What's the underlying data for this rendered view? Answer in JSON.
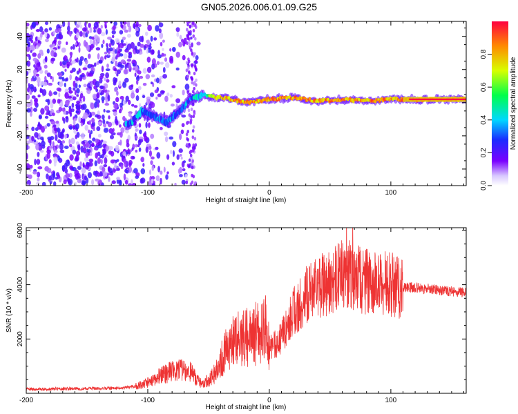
{
  "title": "GN05.2026.006.01.09.G25",
  "chart_data": [
    {
      "type": "heatmap",
      "xlabel": "Height of straight line (km)",
      "ylabel": "Frequency (Hz)",
      "xlim": [
        -200,
        162
      ],
      "ylim": [
        -50,
        49
      ],
      "xticks": [
        -200,
        -100,
        0,
        100
      ],
      "xtick_labels": [
        "-200",
        "-100",
        "0",
        "100"
      ],
      "yticks": [
        -40,
        -20,
        0,
        20,
        40
      ],
      "ytick_labels": [
        "-40",
        "-20",
        "0",
        "20",
        "40"
      ],
      "colorbar": {
        "label": "Normalized spectral amplitude",
        "range": [
          0,
          1
        ],
        "ticks": [
          0,
          0.2,
          0.4,
          0.6,
          0.8
        ],
        "tick_labels": [
          "0.0",
          "0.2",
          "0.4",
          "0.6",
          "0.8"
        ]
      },
      "ridge": {
        "x": [
          -115,
          -105,
          -95,
          -85,
          -75,
          -65,
          -55,
          -45,
          -35,
          -20,
          -10,
          0,
          20,
          40,
          60,
          80,
          100,
          120,
          140,
          162
        ],
        "frequency": [
          -13,
          -5,
          -8,
          -12,
          -6,
          2,
          5,
          3,
          3,
          0,
          1,
          2,
          3,
          1,
          2,
          1,
          2,
          2,
          2,
          2
        ],
        "peak_amplitude": [
          0.45,
          0.45,
          0.4,
          0.45,
          0.4,
          0.45,
          0.55,
          0.85,
          0.9,
          0.95,
          0.95,
          0.95,
          0.95,
          0.95,
          0.95,
          0.95,
          0.95,
          1.0,
          1.0,
          1.0
        ]
      },
      "noise_region": {
        "x_range": [
          -200,
          -55
        ],
        "amplitude_range": [
          0.05,
          0.25
        ]
      }
    },
    {
      "type": "line",
      "xlabel": "Height of straight line (km)",
      "ylabel": "SNR (10 * v/v)",
      "xlim": [
        -200,
        162
      ],
      "ylim": [
        0,
        6100
      ],
      "xticks": [
        -200,
        -100,
        0,
        100
      ],
      "xtick_labels": [
        "-200",
        "-100",
        "0",
        "100"
      ],
      "yticks": [
        2000,
        4000,
        6000
      ],
      "ytick_labels": [
        "2000",
        "4000",
        "6000"
      ],
      "color": "#ee3333",
      "series": [
        {
          "name": "SNR",
          "x": [
            -200,
            -180,
            -160,
            -140,
            -120,
            -110,
            -100,
            -90,
            -80,
            -70,
            -65,
            -55,
            -45,
            -35,
            -25,
            -15,
            -10,
            -5,
            -2,
            0,
            5,
            10,
            20,
            30,
            40,
            50,
            60,
            70,
            80,
            90,
            100,
            110,
            120,
            140,
            162
          ],
          "y": [
            150,
            160,
            170,
            180,
            200,
            250,
            400,
            650,
            800,
            850,
            780,
            300,
            700,
            1700,
            2000,
            2100,
            2200,
            2300,
            2400,
            1600,
            1800,
            2100,
            3000,
            3600,
            3900,
            4100,
            4400,
            4300,
            4100,
            4000,
            4000,
            3900,
            3900,
            3800,
            3700
          ]
        }
      ]
    }
  ]
}
